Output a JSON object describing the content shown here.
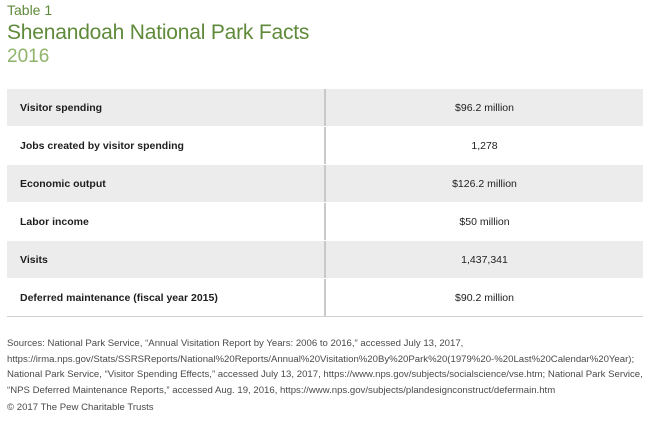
{
  "header": {
    "table_label": "Table 1",
    "title": "Shenandoah National Park Facts",
    "subtitle": "2016"
  },
  "table": {
    "rows": [
      {
        "label": "Visitor spending",
        "value": "$96.2 million"
      },
      {
        "label": "Jobs created by visitor spending",
        "value": "1,278"
      },
      {
        "label": "Economic output",
        "value": "$126.2 million"
      },
      {
        "label": "Labor income",
        "value": "$50 million"
      },
      {
        "label": "Visits",
        "value": "1,437,341"
      },
      {
        "label": "Deferred maintenance (fiscal year 2015)",
        "value": "$90.2 million"
      }
    ]
  },
  "footer": {
    "sources": "Sources: National Park Service, “Annual Visitation Report by Years: 2006 to 2016,” accessed July 13, 2017, https://irma.nps.gov/Stats/SSRSReports/National%20Reports/Annual%20Visitation%20By%20Park%20(1979%20-%20Last%20Calendar%20Year); National Park Service, “Visitor Spending Effects,” accessed July 13, 2017, https://www.nps.gov/subjects/socialscience/vse.htm; National Park Service, “NPS Deferred Maintenance Reports,” accessed Aug. 19, 2016, https://www.nps.gov/subjects/plandesignconstruct/defermain.htm",
    "copyright": "© 2017 The Pew Charitable Trusts"
  },
  "colors": {
    "title_green": "#5f8a3a",
    "subtitle_green": "#8fb36a",
    "shaded_row": "#ececec"
  }
}
